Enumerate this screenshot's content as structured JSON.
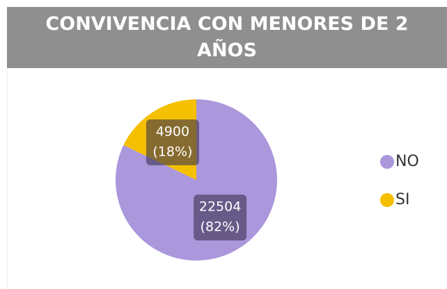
{
  "chart_data": {
    "type": "pie",
    "title": "CONVIVENCIA CON MENORES DE 2 AÑOS",
    "categories": [
      "NO",
      "SI"
    ],
    "values": [
      22504,
      4900
    ],
    "percent_labels": [
      "(82%)",
      "(18%)"
    ],
    "colors": [
      "#ab97dc",
      "#f5c000"
    ]
  }
}
